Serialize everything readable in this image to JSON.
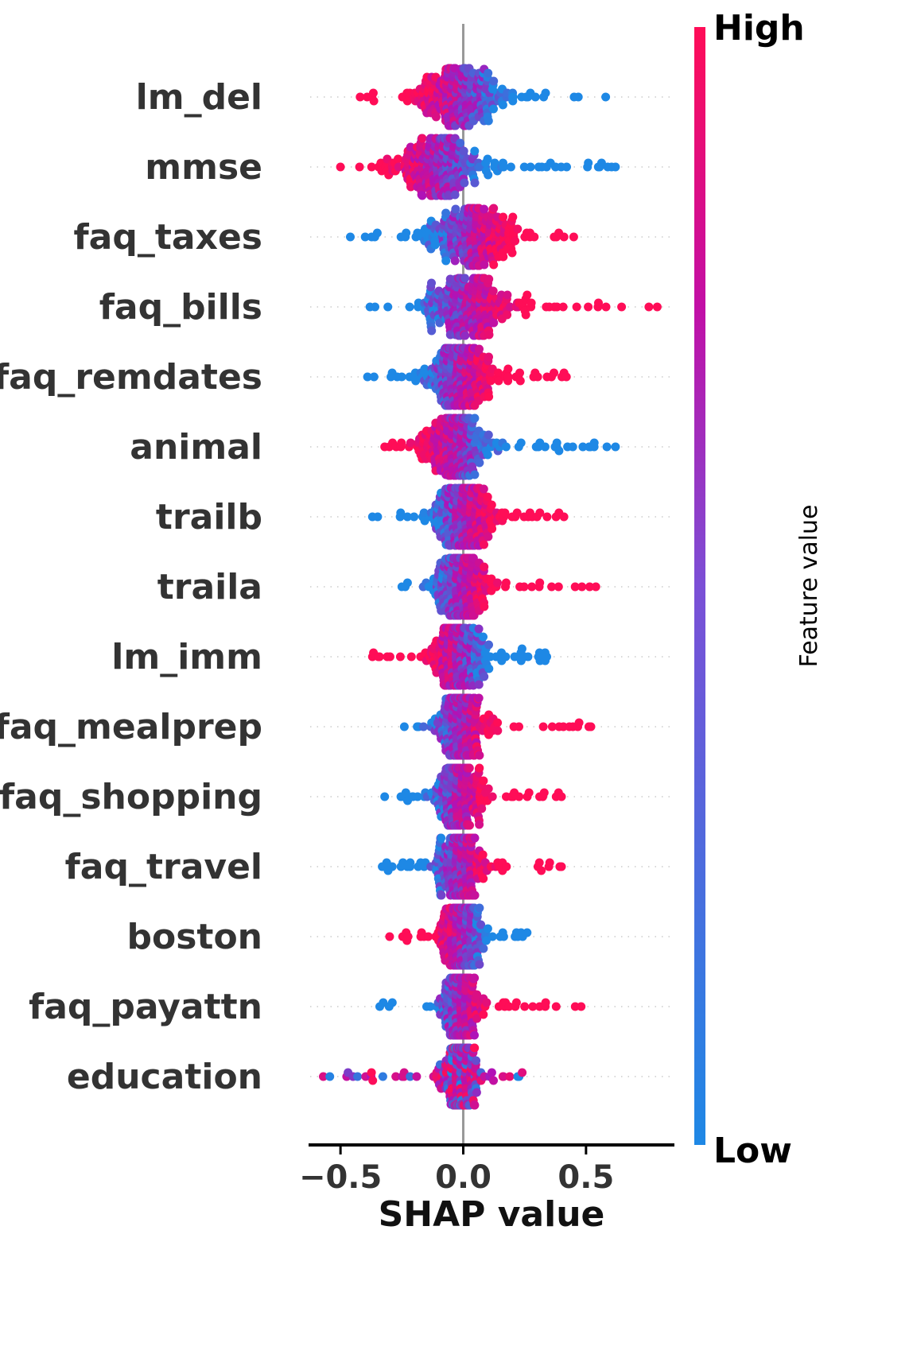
{
  "chart_data": {
    "type": "scatter",
    "subtype": "shap-beeswarm",
    "title": "",
    "xlabel": "SHAP value",
    "ylabel": "",
    "xlim": [
      -0.63,
      0.86
    ],
    "x_ticks": [
      -0.5,
      0.0,
      0.5
    ],
    "x_tick_labels": [
      "−0.5",
      "0.0",
      "0.5"
    ],
    "grid": false,
    "zero_line": true,
    "colorbar": {
      "title": "Feature value",
      "high_label": "High",
      "low_label": "Low",
      "high_color": "#ff0d57",
      "mid_color": "#b012b8",
      "low_color": "#1e88e5"
    },
    "features": [
      {
        "name": "lm_del",
        "min": -0.42,
        "max": 0.58,
        "center": -0.02,
        "spread": 0.18,
        "skew": 1.0,
        "high_side": "negative"
      },
      {
        "name": "mmse",
        "min": -0.5,
        "max": 0.62,
        "center": -0.1,
        "spread": 0.16,
        "skew": 1.0,
        "high_side": "negative"
      },
      {
        "name": "faq_taxes",
        "min": -0.46,
        "max": 0.45,
        "center": 0.02,
        "spread": 0.16,
        "skew": 1.0,
        "high_side": "positive"
      },
      {
        "name": "faq_bills",
        "min": -0.38,
        "max": 0.79,
        "center": 0.02,
        "spread": 0.17,
        "skew": 1.0,
        "high_side": "positive"
      },
      {
        "name": "faq_remdates",
        "min": -0.39,
        "max": 0.42,
        "center": -0.02,
        "spread": 0.12,
        "skew": 1.0,
        "high_side": "positive"
      },
      {
        "name": "animal",
        "min": -0.32,
        "max": 0.62,
        "center": -0.03,
        "spread": 0.13,
        "skew": 1.0,
        "high_side": "negative"
      },
      {
        "name": "trailb",
        "min": -0.37,
        "max": 0.41,
        "center": 0.0,
        "spread": 0.12,
        "skew": 1.0,
        "high_side": "positive"
      },
      {
        "name": "traila",
        "min": -0.25,
        "max": 0.54,
        "center": -0.01,
        "spread": 0.1,
        "skew": 1.0,
        "high_side": "positive"
      },
      {
        "name": "lm_imm",
        "min": -0.37,
        "max": 0.34,
        "center": -0.02,
        "spread": 0.1,
        "skew": 1.0,
        "high_side": "negative"
      },
      {
        "name": "faq_mealprep",
        "min": -0.24,
        "max": 0.52,
        "center": -0.01,
        "spread": 0.09,
        "skew": 1.0,
        "high_side": "positive"
      },
      {
        "name": "faq_shopping",
        "min": -0.32,
        "max": 0.4,
        "center": -0.02,
        "spread": 0.09,
        "skew": 1.0,
        "high_side": "positive"
      },
      {
        "name": "faq_travel",
        "min": -0.33,
        "max": 0.4,
        "center": -0.01,
        "spread": 0.09,
        "skew": 1.0,
        "high_side": "positive"
      },
      {
        "name": "boston",
        "min": -0.3,
        "max": 0.26,
        "center": -0.01,
        "spread": 0.07,
        "skew": 1.0,
        "high_side": "negative"
      },
      {
        "name": "faq_payattn",
        "min": -0.34,
        "max": 0.48,
        "center": -0.01,
        "spread": 0.07,
        "skew": 1.0,
        "high_side": "positive"
      },
      {
        "name": "education",
        "min": -0.57,
        "max": 0.24,
        "center": -0.01,
        "spread": 0.06,
        "skew": 1.0,
        "high_side": "mixed"
      }
    ]
  }
}
